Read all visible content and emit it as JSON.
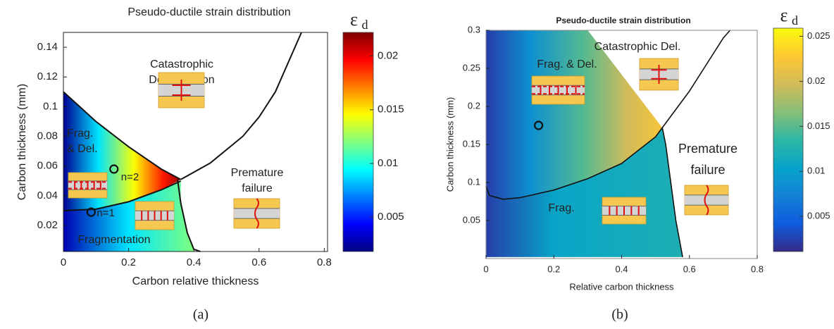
{
  "chart_data": [
    {
      "type": "contour",
      "title": "Pseudo-ductile strain distribution",
      "panel": "(a)",
      "xlabel": "Carbon relative thickness",
      "ylabel": "Carbon thickness (mm)",
      "xlim": [
        0,
        0.81
      ],
      "ylim": [
        0.0025,
        0.15
      ],
      "xticks": [
        0,
        0.2,
        0.4,
        0.6,
        0.8
      ],
      "yticks": [
        0.02,
        0.04,
        0.06,
        0.08,
        0.1,
        0.12,
        0.14
      ],
      "colorbar": {
        "label": "ε",
        "subscript": "d",
        "clim": [
          0.0018,
          0.0222
        ],
        "ticks": [
          0.005,
          0.01,
          0.015,
          0.02
        ],
        "colors": [
          "#00007f",
          "#0000ff",
          "#007fff",
          "#00ffff",
          "#7fff7f",
          "#ffff00",
          "#ff7f00",
          "#ff0000",
          "#7f0000"
        ]
      },
      "regions": [
        {
          "x": [
            0,
            0.05,
            0.1,
            0.2,
            0.3,
            0.36,
            0.3,
            0.2,
            0.1,
            0
          ],
          "y": [
            0.11,
            0.1,
            0.09,
            0.073,
            0.058,
            0.051,
            0.044,
            0.036,
            0.031,
            0.03
          ]
        },
        {
          "x": [
            0,
            0.1,
            0.2,
            0.3,
            0.36,
            0.36,
            0.38,
            0.4,
            0
          ],
          "y": [
            0.03,
            0.031,
            0.036,
            0.044,
            0.05,
            0.035,
            0.015,
            0.0025,
            0.0025
          ]
        }
      ],
      "boundaries": [
        {
          "x": [
            0,
            0.05,
            0.1,
            0.2,
            0.3,
            0.36
          ],
          "y": [
            0.11,
            0.1,
            0.09,
            0.073,
            0.058,
            0.051
          ]
        },
        {
          "x": [
            0.36,
            0.45,
            0.55,
            0.6,
            0.65,
            0.7,
            0.73
          ],
          "y": [
            0.051,
            0.062,
            0.08,
            0.093,
            0.11,
            0.135,
            0.15
          ]
        },
        {
          "x": [
            0.35,
            0.36,
            0.38,
            0.4,
            0.42
          ],
          "y": [
            0.051,
            0.035,
            0.015,
            0.004,
            0.0025
          ]
        },
        {
          "x": [
            0,
            0.1,
            0.2,
            0.3,
            0.36
          ],
          "y": [
            0.03,
            0.031,
            0.036,
            0.044,
            0.05
          ]
        }
      ],
      "points": {
        "x": [
          0.155,
          0.085
        ],
        "y": [
          0.058,
          0.029
        ],
        "labels": [
          "n=2",
          "n=1"
        ]
      },
      "annotations": [
        [
          "Catastrophic",
          "Delamination"
        ],
        [
          "Frag.",
          "& Del."
        ],
        [
          "Premature",
          "failure"
        ],
        [
          "Fragmentation"
        ]
      ]
    },
    {
      "type": "contour",
      "title": "Pseudo-ductile strain distribution",
      "panel": "(b)",
      "xlabel": "Relative carbon thickness",
      "ylabel": "Carbon thickness (mm)",
      "xlim": [
        0,
        0.8
      ],
      "ylim": [
        0,
        0.3
      ],
      "xticks": [
        0,
        0.2,
        0.4,
        0.6,
        0.8
      ],
      "yticks": [
        0.05,
        0.1,
        0.15,
        0.2,
        0.25,
        0.3
      ],
      "colorbar": {
        "label": "ε",
        "subscript": "d",
        "clim": [
          0.0011,
          0.0259
        ],
        "ticks": [
          0.005,
          0.01,
          0.015,
          0.02,
          0.025
        ],
        "colors": [
          "#352a87",
          "#0f5cdd",
          "#1481d6",
          "#06a4ca",
          "#2eb7a4",
          "#87bf77",
          "#d1bb59",
          "#fec832",
          "#f9fb0e"
        ]
      },
      "regions": [
        {
          "x": [
            0,
            0.3,
            0.52,
            0.5,
            0.4,
            0.3,
            0.2,
            0.1,
            0.05,
            0.01,
            0
          ],
          "y": [
            0.3,
            0.3,
            0.172,
            0.16,
            0.125,
            0.105,
            0.09,
            0.08,
            0.078,
            0.083,
            0.095
          ]
        },
        {
          "x": [
            0,
            0.01,
            0.05,
            0.1,
            0.2,
            0.3,
            0.4,
            0.5,
            0.52,
            0.53,
            0.545,
            0.56,
            0.58,
            0
          ],
          "y": [
            0.095,
            0.083,
            0.078,
            0.08,
            0.09,
            0.105,
            0.125,
            0.16,
            0.172,
            0.15,
            0.1,
            0.05,
            0.002,
            0.002
          ]
        }
      ],
      "boundaries": [
        {
          "x": [
            0,
            0.01,
            0.05,
            0.1,
            0.2,
            0.3,
            0.4,
            0.5,
            0.52,
            0.6,
            0.7,
            0.72
          ],
          "y": [
            0.095,
            0.083,
            0.078,
            0.08,
            0.09,
            0.105,
            0.125,
            0.16,
            0.172,
            0.22,
            0.29,
            0.3
          ]
        },
        {
          "x": [
            0.52,
            0.53,
            0.545,
            0.56,
            0.58
          ],
          "y": [
            0.172,
            0.15,
            0.1,
            0.05,
            0.002
          ]
        }
      ],
      "points": {
        "x": [
          0.155
        ],
        "y": [
          0.175
        ]
      },
      "annotations": [
        [
          "Frag. & Del."
        ],
        [
          "Catastrophic Del."
        ],
        [
          "Premature",
          "failure"
        ],
        [
          "Frag."
        ]
      ]
    }
  ]
}
